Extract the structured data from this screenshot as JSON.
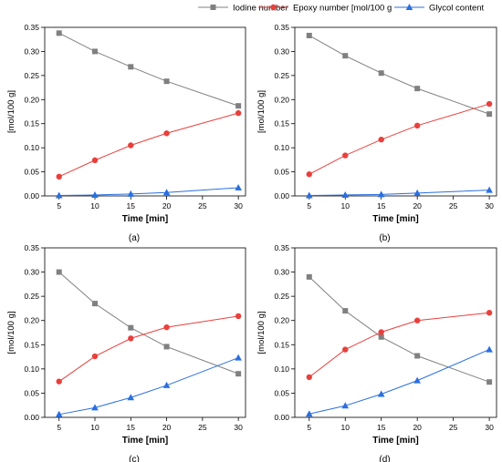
{
  "legend": {
    "placement": "top-center",
    "entries": [
      {
        "label": "Iodine number",
        "color": "#808080",
        "marker": "square"
      },
      {
        "label": "Epoxy number [mol/100 g",
        "color": "#e8403c",
        "marker": "circle"
      },
      {
        "label": "Glycol content",
        "color": "#2a6fe0",
        "marker": "triangle"
      }
    ]
  },
  "chart_data": [
    {
      "type": "line",
      "panel_label": "(a)",
      "xlabel": "Time [min]",
      "ylabel": "[mol/100 g]",
      "x": [
        5,
        10,
        15,
        20,
        30
      ],
      "xlim": [
        3,
        31
      ],
      "ylim": [
        0,
        0.35
      ],
      "xticks": [
        "5",
        "10",
        "15",
        "20",
        "25",
        "30"
      ],
      "yticks": [
        "0.00",
        "0.05",
        "0.10",
        "0.15",
        "0.20",
        "0.25",
        "0.30",
        "0.35"
      ],
      "grid": false,
      "series": [
        {
          "name": "Iodine number",
          "color": "#808080",
          "marker": "square",
          "values": [
            0.338,
            0.3,
            0.268,
            0.238,
            0.187
          ]
        },
        {
          "name": "Epoxy number [mol/100 g",
          "color": "#e8403c",
          "marker": "circle",
          "values": [
            0.04,
            0.074,
            0.105,
            0.13,
            0.172
          ]
        },
        {
          "name": "Glycol content",
          "color": "#2a6fe0",
          "marker": "triangle",
          "values": [
            0.001,
            0.002,
            0.004,
            0.007,
            0.017
          ]
        }
      ]
    },
    {
      "type": "line",
      "panel_label": "(b)",
      "xlabel": "Time [min]",
      "ylabel": "[mol/100 g]",
      "x": [
        5,
        10,
        15,
        20,
        30
      ],
      "xlim": [
        3,
        31
      ],
      "ylim": [
        0,
        0.35
      ],
      "xticks": [
        "5",
        "10",
        "15",
        "20",
        "25",
        "30"
      ],
      "yticks": [
        "0.00",
        "0.05",
        "0.10",
        "0.15",
        "0.20",
        "0.25",
        "0.30",
        "0.35"
      ],
      "grid": false,
      "series": [
        {
          "name": "Iodine number",
          "color": "#808080",
          "marker": "square",
          "values": [
            0.333,
            0.291,
            0.255,
            0.223,
            0.17
          ]
        },
        {
          "name": "Epoxy number [mol/100 g",
          "color": "#e8403c",
          "marker": "circle",
          "values": [
            0.045,
            0.084,
            0.117,
            0.146,
            0.191
          ]
        },
        {
          "name": "Glycol content",
          "color": "#2a6fe0",
          "marker": "triangle",
          "values": [
            0.001,
            0.002,
            0.003,
            0.006,
            0.012
          ]
        }
      ]
    },
    {
      "type": "line",
      "panel_label": "(c)",
      "xlabel": "Time [min]",
      "ylabel": "[mol/100 g]",
      "x": [
        5,
        10,
        15,
        20,
        30
      ],
      "xlim": [
        3,
        31
      ],
      "ylim": [
        0,
        0.35
      ],
      "xticks": [
        "5",
        "10",
        "15",
        "20",
        "25",
        "30"
      ],
      "yticks": [
        "0.00",
        "0.05",
        "0.10",
        "0.15",
        "0.20",
        "0.25",
        "0.30",
        "0.35"
      ],
      "grid": false,
      "series": [
        {
          "name": "Iodine number",
          "color": "#808080",
          "marker": "square",
          "values": [
            0.3,
            0.235,
            0.185,
            0.146,
            0.09
          ]
        },
        {
          "name": "Epoxy number [mol/100 g",
          "color": "#e8403c",
          "marker": "circle",
          "values": [
            0.074,
            0.126,
            0.163,
            0.186,
            0.209
          ]
        },
        {
          "name": "Glycol content",
          "color": "#2a6fe0",
          "marker": "triangle",
          "values": [
            0.006,
            0.02,
            0.041,
            0.066,
            0.123
          ]
        }
      ]
    },
    {
      "type": "line",
      "panel_label": "(d)",
      "xlabel": "Time [min]",
      "ylabel": "[mol/100 g]",
      "x": [
        5,
        10,
        15,
        20,
        30
      ],
      "xlim": [
        3,
        31
      ],
      "ylim": [
        0,
        0.35
      ],
      "xticks": [
        "5",
        "10",
        "15",
        "20",
        "25",
        "30"
      ],
      "yticks": [
        "0.00",
        "0.05",
        "0.10",
        "0.15",
        "0.20",
        "0.25",
        "0.30",
        "0.35"
      ],
      "grid": false,
      "series": [
        {
          "name": "Iodine number",
          "color": "#808080",
          "marker": "square",
          "values": [
            0.29,
            0.22,
            0.166,
            0.127,
            0.073
          ]
        },
        {
          "name": "Epoxy number [mol/100 g",
          "color": "#e8403c",
          "marker": "circle",
          "values": [
            0.083,
            0.14,
            0.176,
            0.2,
            0.216
          ]
        },
        {
          "name": "Glycol content",
          "color": "#2a6fe0",
          "marker": "triangle",
          "values": [
            0.007,
            0.024,
            0.048,
            0.076,
            0.14
          ]
        }
      ]
    }
  ]
}
